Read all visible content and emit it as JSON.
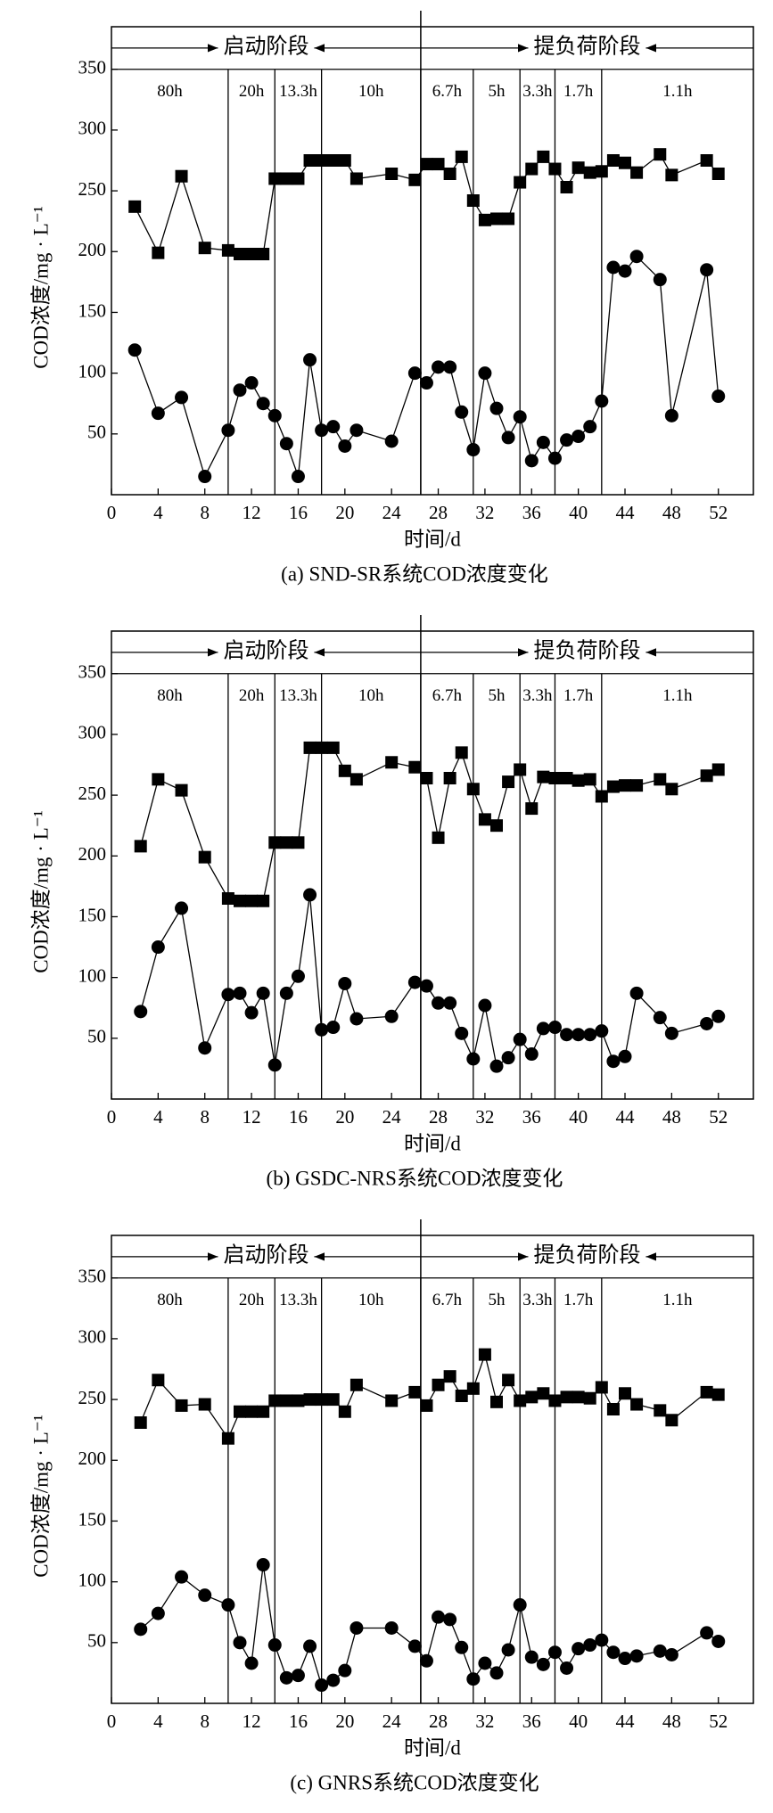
{
  "chart_data": [
    {
      "type": "line",
      "title": "(a) SND-SR系统COD浓度变化",
      "x_label": "时间/d",
      "y_label": "COD浓度/mg · L⁻¹",
      "xlim": [
        0,
        55
      ],
      "ylim": [
        0,
        385
      ],
      "xticks": [
        0,
        4,
        8,
        12,
        16,
        20,
        24,
        28,
        32,
        36,
        40,
        44,
        48,
        52
      ],
      "yticks": [
        50,
        100,
        150,
        200,
        250,
        300,
        350
      ],
      "phases": [
        "启动阶段",
        "提负荷阶段"
      ],
      "phase_divider": 26.5,
      "stage_boundaries": [
        10,
        14,
        18,
        26.5,
        31,
        35,
        38,
        42
      ],
      "hrt_labels": [
        "80h",
        "20h",
        "13.3h",
        "10h",
        "6.7h",
        "5h",
        "3.3h",
        "1.7h",
        "1.1h"
      ],
      "series": [
        {
          "color": "#000000",
          "marker": "square",
          "x": [
            2,
            4,
            6,
            8,
            10,
            11,
            12,
            13,
            14,
            15,
            16,
            17,
            18,
            19,
            20,
            21,
            24,
            26,
            27,
            28,
            29,
            30,
            31,
            32,
            33,
            34,
            35,
            36,
            37,
            38,
            39,
            40,
            41,
            42,
            43,
            44,
            45,
            47,
            48,
            51,
            52
          ],
          "values": [
            237,
            199,
            262,
            203,
            201,
            198,
            198,
            198,
            260,
            260,
            260,
            275,
            275,
            275,
            275,
            260,
            264,
            259,
            272,
            272,
            264,
            278,
            242,
            226,
            227,
            227,
            257,
            268,
            278,
            268,
            253,
            269,
            265,
            266,
            275,
            273,
            265,
            280,
            263,
            275,
            264
          ]
        },
        {
          "color": "#000000",
          "marker": "circle",
          "x": [
            2,
            4,
            6,
            8,
            10,
            11,
            12,
            13,
            14,
            15,
            16,
            17,
            18,
            19,
            20,
            21,
            24,
            26,
            27,
            28,
            29,
            30,
            31,
            32,
            33,
            34,
            35,
            36,
            37,
            38,
            39,
            40,
            41,
            42,
            43,
            44,
            45,
            47,
            48,
            51,
            52
          ],
          "values": [
            119,
            67,
            80,
            15,
            53,
            86,
            92,
            75,
            65,
            42,
            15,
            111,
            53,
            56,
            40,
            53,
            44,
            100,
            92,
            105,
            105,
            68,
            37,
            100,
            71,
            47,
            64,
            28,
            43,
            30,
            45,
            48,
            56,
            77,
            187,
            184,
            196,
            177,
            65,
            185,
            81
          ]
        }
      ]
    },
    {
      "type": "line",
      "title": "(b) GSDC-NRS系统COD浓度变化",
      "x_label": "时间/d",
      "y_label": "COD浓度/mg · L⁻¹",
      "xlim": [
        0,
        55
      ],
      "ylim": [
        0,
        385
      ],
      "xticks": [
        0,
        4,
        8,
        12,
        16,
        20,
        24,
        28,
        32,
        36,
        40,
        44,
        48,
        52
      ],
      "yticks": [
        50,
        100,
        150,
        200,
        250,
        300,
        350
      ],
      "phases": [
        "启动阶段",
        "提负荷阶段"
      ],
      "phase_divider": 26.5,
      "stage_boundaries": [
        10,
        14,
        18,
        26.5,
        31,
        35,
        38,
        42
      ],
      "hrt_labels": [
        "80h",
        "20h",
        "13.3h",
        "10h",
        "6.7h",
        "5h",
        "3.3h",
        "1.7h",
        "1.1h"
      ],
      "series": [
        {
          "color": "#000000",
          "marker": "square",
          "x": [
            2.5,
            4,
            6,
            8,
            10,
            11,
            12,
            13,
            14,
            15,
            16,
            17,
            18,
            19,
            20,
            21,
            24,
            26,
            27,
            28,
            29,
            30,
            31,
            32,
            33,
            34,
            35,
            36,
            37,
            38,
            39,
            40,
            41,
            42,
            43,
            44,
            45,
            47,
            48,
            51,
            52
          ],
          "values": [
            208,
            263,
            254,
            199,
            165,
            163,
            163,
            163,
            211,
            211,
            211,
            289,
            289,
            289,
            270,
            263,
            277,
            273,
            264,
            215,
            264,
            285,
            255,
            230,
            225,
            261,
            271,
            239,
            265,
            264,
            264,
            262,
            263,
            249,
            257,
            258,
            258,
            263,
            255,
            266,
            271
          ]
        },
        {
          "color": "#000000",
          "marker": "circle",
          "x": [
            2.5,
            4,
            6,
            8,
            10,
            11,
            12,
            13,
            14,
            15,
            16,
            17,
            18,
            19,
            20,
            21,
            24,
            26,
            27,
            28,
            29,
            30,
            31,
            32,
            33,
            34,
            35,
            36,
            37,
            38,
            39,
            40,
            41,
            42,
            43,
            44,
            45,
            47,
            48,
            51,
            52
          ],
          "values": [
            72,
            125,
            157,
            42,
            86,
            87,
            71,
            87,
            28,
            87,
            101,
            168,
            57,
            59,
            95,
            66,
            68,
            96,
            93,
            79,
            79,
            54,
            33,
            77,
            27,
            34,
            49,
            37,
            58,
            59,
            53,
            53,
            53,
            56,
            31,
            35,
            87,
            67,
            54,
            62,
            68
          ]
        }
      ]
    },
    {
      "type": "line",
      "title": "(c) GNRS系统COD浓度变化",
      "x_label": "时间/d",
      "y_label": "COD浓度/mg · L⁻¹",
      "xlim": [
        0,
        55
      ],
      "ylim": [
        0,
        385
      ],
      "xticks": [
        0,
        4,
        8,
        12,
        16,
        20,
        24,
        28,
        32,
        36,
        40,
        44,
        48,
        52
      ],
      "yticks": [
        50,
        100,
        150,
        200,
        250,
        300,
        350
      ],
      "phases": [
        "启动阶段",
        "提负荷阶段"
      ],
      "phase_divider": 26.5,
      "stage_boundaries": [
        10,
        14,
        18,
        26.5,
        31,
        35,
        38,
        42
      ],
      "hrt_labels": [
        "80h",
        "20h",
        "13.3h",
        "10h",
        "6.7h",
        "5h",
        "3.3h",
        "1.7h",
        "1.1h"
      ],
      "series": [
        {
          "color": "#000000",
          "marker": "square",
          "x": [
            2.5,
            4,
            6,
            8,
            10,
            11,
            12,
            13,
            14,
            15,
            16,
            17,
            18,
            19,
            20,
            21,
            24,
            26,
            27,
            28,
            29,
            30,
            31,
            32,
            33,
            34,
            35,
            36,
            37,
            38,
            39,
            40,
            41,
            42,
            43,
            44,
            45,
            47,
            48,
            51,
            52
          ],
          "values": [
            231,
            266,
            245,
            246,
            218,
            240,
            240,
            240,
            249,
            249,
            249,
            250,
            250,
            250,
            240,
            262,
            249,
            256,
            245,
            262,
            269,
            253,
            259,
            287,
            248,
            266,
            249,
            252,
            255,
            249,
            252,
            252,
            251,
            260,
            242,
            255,
            246,
            241,
            233,
            256,
            254
          ]
        },
        {
          "color": "#000000",
          "marker": "circle",
          "x": [
            2.5,
            4,
            6,
            8,
            10,
            11,
            12,
            13,
            14,
            15,
            16,
            17,
            18,
            19,
            20,
            21,
            24,
            26,
            27,
            28,
            29,
            30,
            31,
            32,
            33,
            34,
            35,
            36,
            37,
            38,
            39,
            40,
            41,
            42,
            43,
            44,
            45,
            47,
            48,
            51,
            52
          ],
          "values": [
            61,
            74,
            104,
            89,
            81,
            50,
            33,
            114,
            48,
            21,
            23,
            47,
            15,
            19,
            27,
            62,
            62,
            47,
            35,
            71,
            69,
            46,
            20,
            33,
            25,
            44,
            81,
            38,
            32,
            42,
            29,
            45,
            48,
            52,
            42,
            37,
            39,
            43,
            40,
            58,
            51
          ]
        }
      ]
    }
  ]
}
